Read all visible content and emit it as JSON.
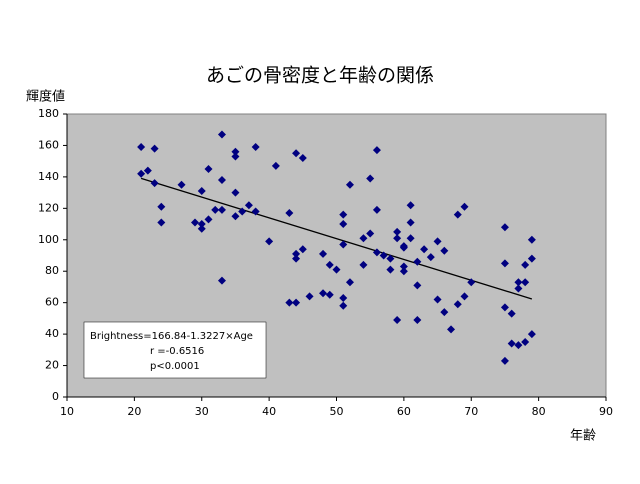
{
  "chart_data": {
    "type": "scatter",
    "title": "あごの骨密度と年齢の関係",
    "y_label": "輝度値",
    "x_label": "年齢",
    "annotation": [
      "Brightness=166.84-1.3227×Age",
      "r =-0.6516",
      "p<0.0001"
    ],
    "trendline": {
      "intercept": 166.84,
      "slope": -1.3227,
      "x_range": [
        21,
        79
      ],
      "color": "#000000"
    },
    "series": [
      {
        "color": "#000080",
        "x": [
          21,
          21,
          22,
          23,
          23,
          24,
          24,
          27,
          29,
          30,
          30,
          30,
          31,
          31,
          32,
          33,
          33,
          33,
          33,
          35,
          35,
          35,
          35,
          36,
          37,
          38,
          38,
          40,
          41,
          43,
          43,
          44,
          44,
          44,
          44,
          45,
          45,
          46,
          48,
          48,
          49,
          49,
          50,
          51,
          51,
          51,
          51,
          51,
          52,
          52,
          54,
          54,
          55,
          55,
          56,
          56,
          56,
          57,
          58,
          58,
          59,
          59,
          59,
          60,
          60,
          60,
          60,
          61,
          61,
          61,
          62,
          62,
          62,
          63,
          64,
          65,
          65,
          66,
          66,
          67,
          68,
          68,
          69,
          69,
          70,
          75,
          75,
          75,
          75,
          76,
          76,
          77,
          77,
          77,
          78,
          78,
          78,
          79,
          79,
          79
        ],
        "values": [
          159,
          142,
          144,
          158,
          136,
          121,
          111,
          135,
          111,
          131,
          107,
          110,
          145,
          113,
          119,
          167,
          138,
          119,
          74,
          156,
          153,
          130,
          115,
          118,
          122,
          159,
          118,
          99,
          147,
          117,
          60,
          155,
          91,
          88,
          60,
          152,
          94,
          64,
          91,
          66,
          84,
          65,
          81,
          116,
          110,
          97,
          63,
          58,
          135,
          73,
          84,
          101,
          139,
          104,
          157,
          119,
          92,
          90,
          81,
          88,
          105,
          101,
          49,
          96,
          95,
          83,
          80,
          122,
          111,
          101,
          86,
          71,
          49,
          94,
          89,
          99,
          62,
          93,
          54,
          43,
          116,
          59,
          121,
          64,
          73,
          108,
          85,
          57,
          23,
          53,
          34,
          69,
          73,
          33,
          84,
          73,
          35,
          100,
          88,
          40
        ]
      }
    ],
    "xlim": [
      10,
      90
    ],
    "xticks": [
      10,
      20,
      30,
      40,
      50,
      60,
      70,
      80,
      90
    ],
    "ylim": [
      0,
      180
    ],
    "yticks": [
      0,
      20,
      40,
      60,
      80,
      100,
      120,
      140,
      160,
      180
    ],
    "plot_background": "#c0c0c0"
  }
}
